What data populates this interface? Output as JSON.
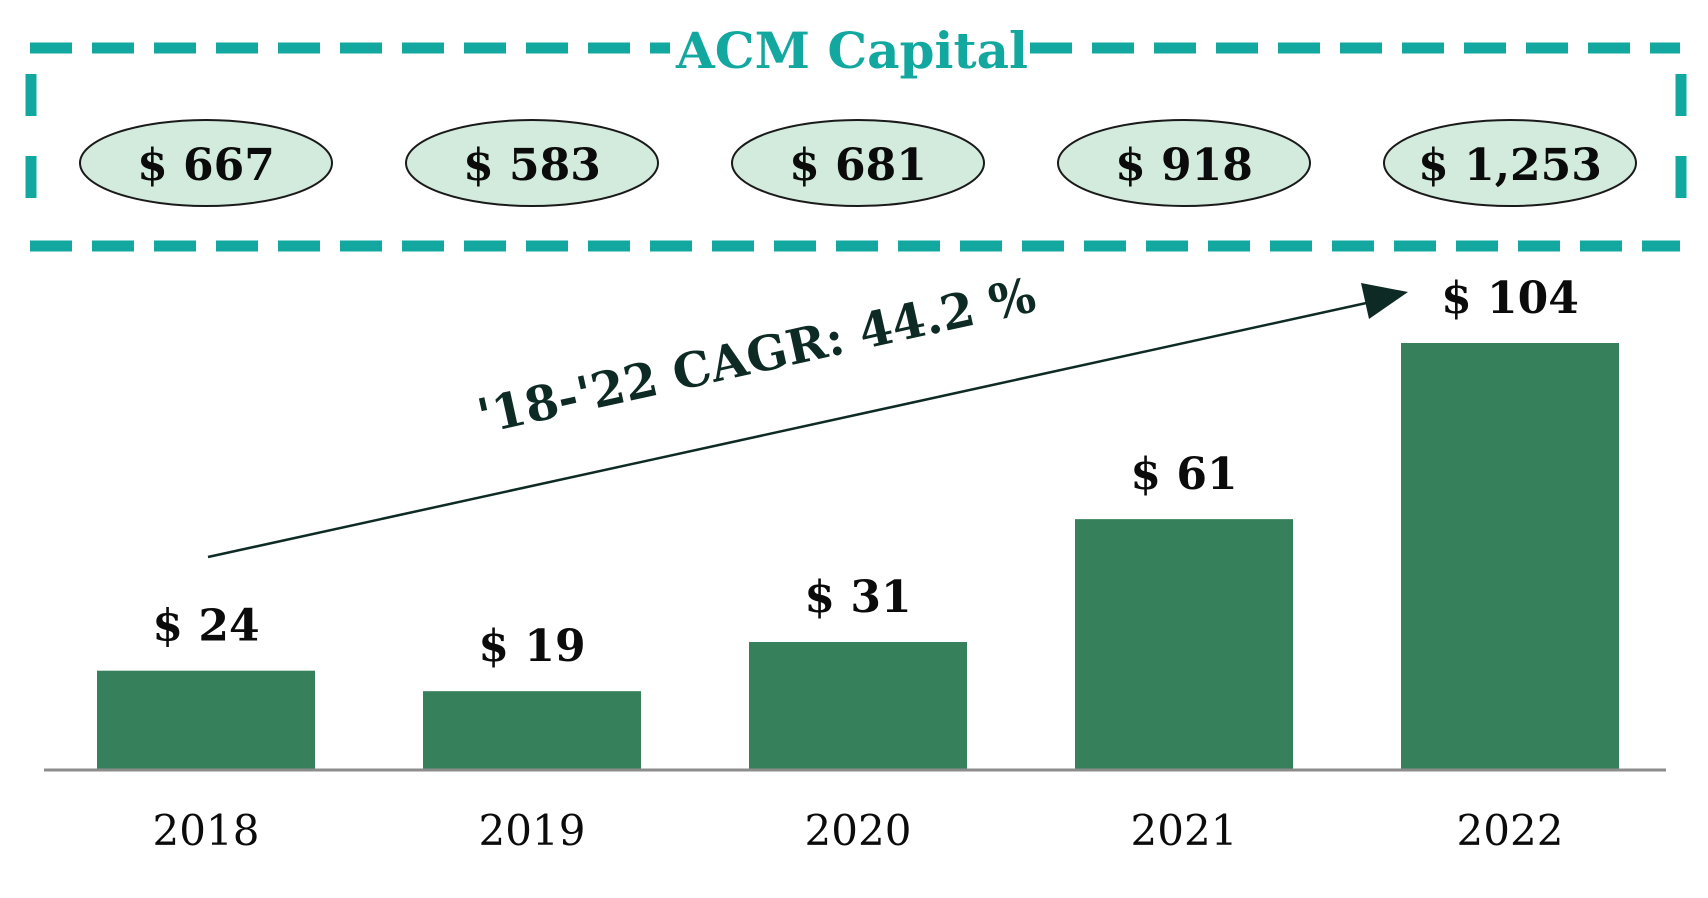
{
  "header": {
    "title": "ACM Capital",
    "badges": [
      "$ 667",
      "$ 583",
      "$ 681",
      "$ 918",
      "$ 1,253"
    ]
  },
  "annotation": {
    "cagr_text": "'18-'22 CAGR: 44.2 %"
  },
  "colors": {
    "accent_teal": "#12A8A0",
    "bar_green": "#36805B",
    "badge_fill": "#D2EBDD",
    "text_dark": "#0B0B0B",
    "arrow_dark": "#0E2A24",
    "axis_gray": "#8C8C8C"
  },
  "chart_data": {
    "type": "bar",
    "categories": [
      "2018",
      "2019",
      "2020",
      "2021",
      "2022"
    ],
    "values": [
      24,
      19,
      31,
      61,
      104
    ],
    "value_labels": [
      "$ 24",
      "$ 19",
      "$ 31",
      "$ 61",
      "$ 104"
    ],
    "title": "",
    "xlabel": "",
    "ylabel": "",
    "ylim": [
      0,
      104
    ],
    "grid": false,
    "legend": "none"
  }
}
